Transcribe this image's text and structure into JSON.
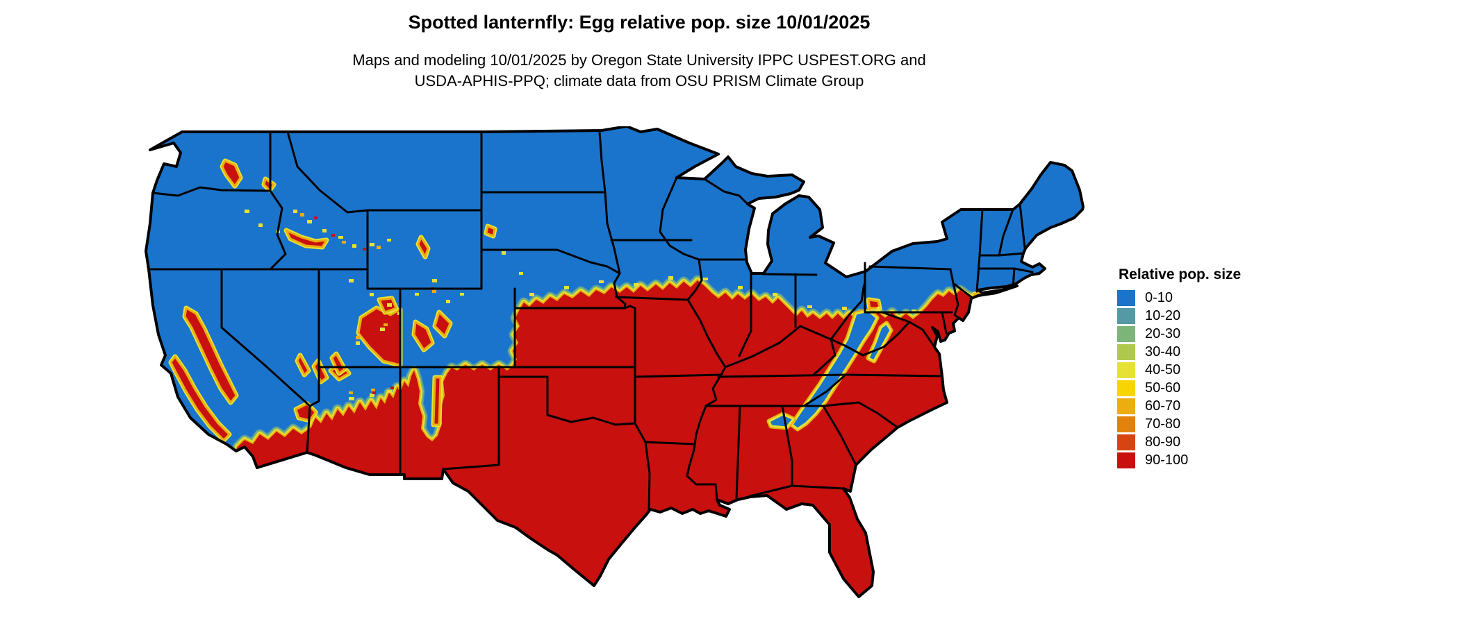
{
  "header": {
    "title": "Spotted lanternfly: Egg relative pop. size 10/01/2025",
    "subtitle1": "Maps and modeling 10/01/2025 by Oregon State University IPPC USPEST.ORG and",
    "subtitle2": "USDA-APHIS-PPQ; climate data from OSU PRISM Climate Group"
  },
  "legend": {
    "title": "Relative pop. size",
    "items": [
      {
        "label": "0-10",
        "color": "#1B74CB"
      },
      {
        "label": "10-20",
        "color": "#5599A4"
      },
      {
        "label": "20-30",
        "color": "#7CB579"
      },
      {
        "label": "30-40",
        "color": "#AFC94C"
      },
      {
        "label": "40-50",
        "color": "#E6E234"
      },
      {
        "label": "50-60",
        "color": "#F7D403"
      },
      {
        "label": "60-70",
        "color": "#EBAD0F"
      },
      {
        "label": "70-80",
        "color": "#E2820D"
      },
      {
        "label": "80-90",
        "color": "#D84410"
      },
      {
        "label": "90-100",
        "color": "#C8100F"
      }
    ]
  },
  "map": {
    "border_color": "#000000",
    "background_color": "#ffffff",
    "region": "Continental United States",
    "low_class_label": "0-10",
    "high_class_label": "90-100"
  }
}
